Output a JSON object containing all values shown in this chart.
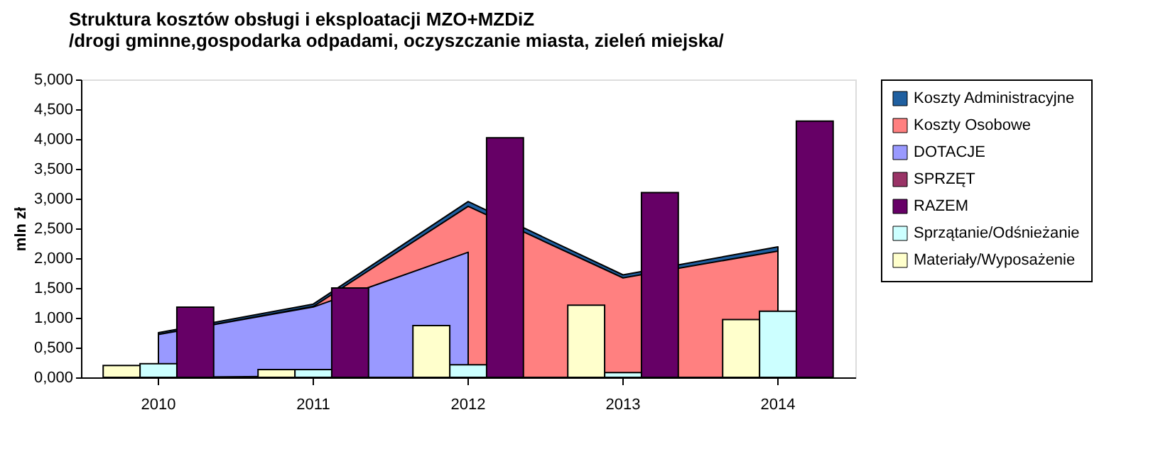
{
  "chart_data": {
    "type": "bar",
    "title": [
      "Struktura kosztów obsługi i eksploatacji  MZO+MZDiZ",
      "/drogi gminne,gospodarka odpadami, oczyszczanie miasta, zieleń miejska/"
    ],
    "ylabel": "mln zł",
    "categories": [
      "2010",
      "2011",
      "2012",
      "2013",
      "2014"
    ],
    "series": [
      {
        "name": "Koszty Administracyjne",
        "type": "area",
        "color": "#1f5fa0",
        "values": [
          0.75,
          1.23,
          2.95,
          1.72,
          2.19
        ]
      },
      {
        "name": "Koszty Osobowe",
        "type": "area",
        "color": "#ff8080",
        "values": [
          0.72,
          1.19,
          2.87,
          1.67,
          2.12
        ]
      },
      {
        "name": "DOTACJE",
        "type": "area",
        "color": "#9999ff",
        "values": [
          0.72,
          1.18,
          2.1,
          null,
          null
        ]
      },
      {
        "name": "SPRZĘT",
        "type": "area",
        "color": "#993366",
        "values": [
          0,
          0.02,
          null,
          null,
          null
        ]
      },
      {
        "name": "RAZEM",
        "color": "#660066",
        "values": [
          1.18,
          1.5,
          4.02,
          3.1,
          4.3
        ]
      },
      {
        "name": "Sprzątanie/Odśnieżanie",
        "color": "#ccffff",
        "values": [
          0.23,
          0.13,
          0.21,
          0.08,
          1.11
        ]
      },
      {
        "name": "Materiały/Wyposażenie",
        "color": "#ffffcc",
        "values": [
          0.2,
          0.13,
          0.87,
          1.21,
          0.97
        ]
      }
    ],
    "ylim": [
      0,
      5
    ],
    "yticks": [
      {
        "value": 0,
        "label": "0,000"
      },
      {
        "value": 0.5,
        "label": "0,500"
      },
      {
        "value": 1,
        "label": "1,000"
      },
      {
        "value": 1.5,
        "label": "1,500"
      },
      {
        "value": 2,
        "label": "2,000"
      },
      {
        "value": 2.5,
        "label": "2,500"
      },
      {
        "value": 3,
        "label": "3,000"
      },
      {
        "value": 3.5,
        "label": "3,500"
      },
      {
        "value": 4,
        "label": "4,000"
      },
      {
        "value": 4.5,
        "label": "4,500"
      },
      {
        "value": 5,
        "label": "5,000"
      }
    ],
    "grid": false,
    "legend": "right"
  }
}
